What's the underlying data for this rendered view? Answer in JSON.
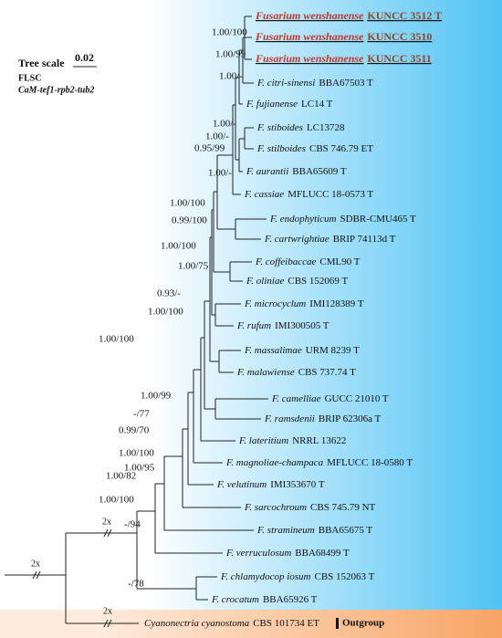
{
  "scale": {
    "title": "Tree scale",
    "value": "0.02",
    "dataset": "FLSC",
    "loci": "CaM-tef1-rpb2-tub2"
  },
  "taxa": [
    {
      "name": "Fusarium wenshanense",
      "strain": "KUNCC 3512 T"
    },
    {
      "name": "Fusarium wenshanense",
      "strain": "KUNCC 3510"
    },
    {
      "name": "Fusarium wenshanense",
      "strain": "KUNCC 3511"
    },
    {
      "name": "F. citri-sinensi",
      "strain": "BBA67503 T"
    },
    {
      "name": "F. fujianense",
      "strain": "LC14 T"
    },
    {
      "name": "F. stiboides",
      "strain": "LC13728"
    },
    {
      "name": "F. stilboides",
      "strain": "CBS 746.79 ET"
    },
    {
      "name": "F. aurantii",
      "strain": "BBA65609 T"
    },
    {
      "name": "F. cassiae",
      "strain": "MFLUCC 18-0573 T"
    },
    {
      "name": "F. endophyticum",
      "strain": "SDBR-CMU465 T"
    },
    {
      "name": "F. cartwrightiae",
      "strain": "BRIP 74113d T"
    },
    {
      "name": "F. coffeibaccae",
      "strain": "CML90 T"
    },
    {
      "name": "F. oliniae",
      "strain": "CBS 152069 T"
    },
    {
      "name": "F. microcyclum",
      "strain": "IMI128389 T"
    },
    {
      "name": "F. rufum",
      "strain": "IMI300505 T"
    },
    {
      "name": "F. massalimae",
      "strain": "URM 8239 T"
    },
    {
      "name": "F. malawiense",
      "strain": "CBS 737.74 T"
    },
    {
      "name": "F. camelliae",
      "strain": "GUCC 21010 T"
    },
    {
      "name": "F. ramsdenii",
      "strain": "BRIP 62306a T"
    },
    {
      "name": "F. lateritium",
      "strain": "NRRL 13622"
    },
    {
      "name": "F. magnoliae-champaca",
      "strain": "MFLUCC 18-0580 T"
    },
    {
      "name": "F. velutinum",
      "strain": "IMI353670 T"
    },
    {
      "name": "F. sarcochroum",
      "strain": "CBS 745.79 NT"
    },
    {
      "name": "F. stramineum",
      "strain": "BBA65675 T"
    },
    {
      "name": "F. verruculosum",
      "strain": "BBA68499 T"
    },
    {
      "name": "F. chlamydocop iosum",
      "strain": "CBS 152063 T"
    },
    {
      "name": "F. crocatum",
      "strain": "BBA65926 T"
    },
    {
      "name": "Cyanonectria cyanostoma",
      "strain": "CBS 101734 ET"
    }
  ],
  "outgroup": "Outgroup",
  "supports": [
    "1.00/100",
    "1.00/99",
    "1.00/-",
    "1.00/-",
    "1.00/-",
    "0.95/99",
    "1.00/-",
    "1.00/100",
    "0.99/100",
    "1.00/100",
    "1.00/75",
    "0.93/-",
    "1.00/100",
    "1.00/100",
    "1.00/99",
    "-/77",
    "0.99/70",
    "1.00/100",
    "1.00/95",
    "1.00/82",
    "1.00/100",
    "-/94",
    "-/78"
  ],
  "breaks": [
    "2x",
    "2x",
    "2x"
  ]
}
